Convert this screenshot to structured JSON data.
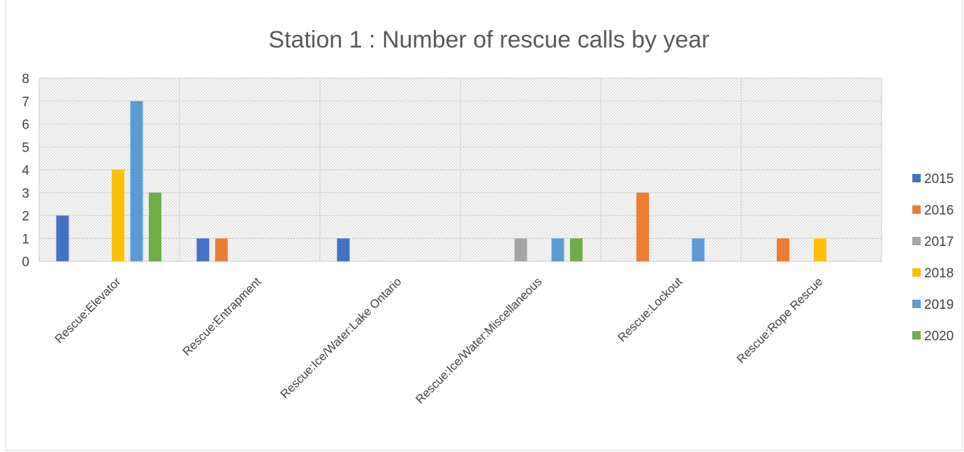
{
  "chart_data": {
    "type": "bar",
    "title": "Station 1 : Number of rescue calls by year",
    "categories": [
      "Rescue:Elevator",
      "Rescue:Entrapment",
      "Rescue:Ice/Water:Lake Ontario",
      "Rescue:Ice/Water:Miscellaneous",
      "Rescue:Lockout",
      "Rescue:Rope Rescue"
    ],
    "series": [
      {
        "name": "2015",
        "color": "#4472C4",
        "values": [
          2,
          1,
          1,
          0,
          0,
          0
        ]
      },
      {
        "name": "2016",
        "color": "#ED7D31",
        "values": [
          0,
          1,
          0,
          0,
          3,
          1
        ]
      },
      {
        "name": "2017",
        "color": "#A5A5A5",
        "values": [
          0,
          0,
          0,
          1,
          0,
          0
        ]
      },
      {
        "name": "2018",
        "color": "#FFC000",
        "values": [
          4,
          0,
          0,
          0,
          0,
          1
        ]
      },
      {
        "name": "2019",
        "color": "#5B9BD5",
        "values": [
          7,
          0,
          0,
          1,
          1,
          0
        ]
      },
      {
        "name": "2020",
        "color": "#70AD47",
        "values": [
          3,
          0,
          0,
          1,
          0,
          0
        ]
      }
    ],
    "yticks": [
      "0",
      "1",
      "2",
      "3",
      "4",
      "5",
      "6",
      "7",
      "8"
    ],
    "ylim": [
      0,
      8
    ],
    "xlabel": "",
    "ylabel": "",
    "grid": true,
    "legend": "right"
  }
}
